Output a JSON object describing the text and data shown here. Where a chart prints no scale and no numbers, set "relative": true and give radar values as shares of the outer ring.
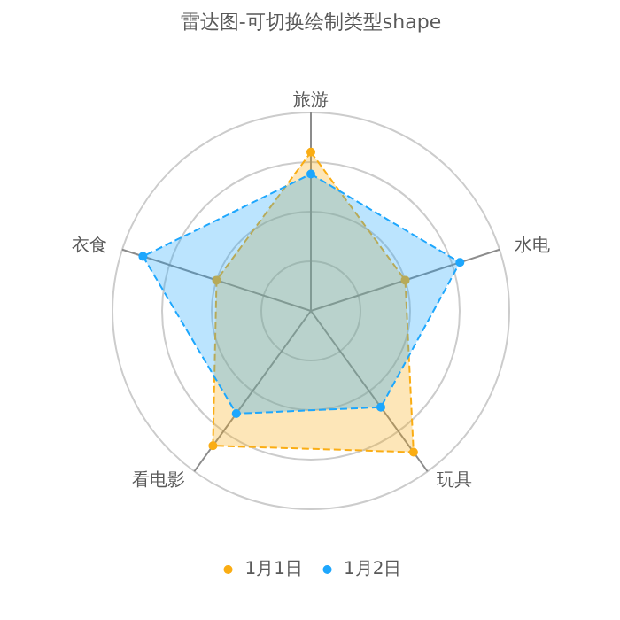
{
  "chart_data": {
    "type": "radar",
    "title": "雷达图-可切换绘制类型shape",
    "categories": [
      "旅游",
      "水电",
      "玩具",
      "看电影",
      "衣食"
    ],
    "relative": true,
    "series": [
      {
        "name": "1月1日",
        "color": "#faad14",
        "values": [
          0.8,
          0.5,
          0.88,
          0.84,
          0.5
        ]
      },
      {
        "name": "1月2日",
        "color": "#1ea7fd",
        "values": [
          0.69,
          0.79,
          0.6,
          0.64,
          0.89
        ]
      }
    ],
    "grid": true,
    "legend": "bottom",
    "marker": "circle",
    "line_style": "dashed"
  }
}
